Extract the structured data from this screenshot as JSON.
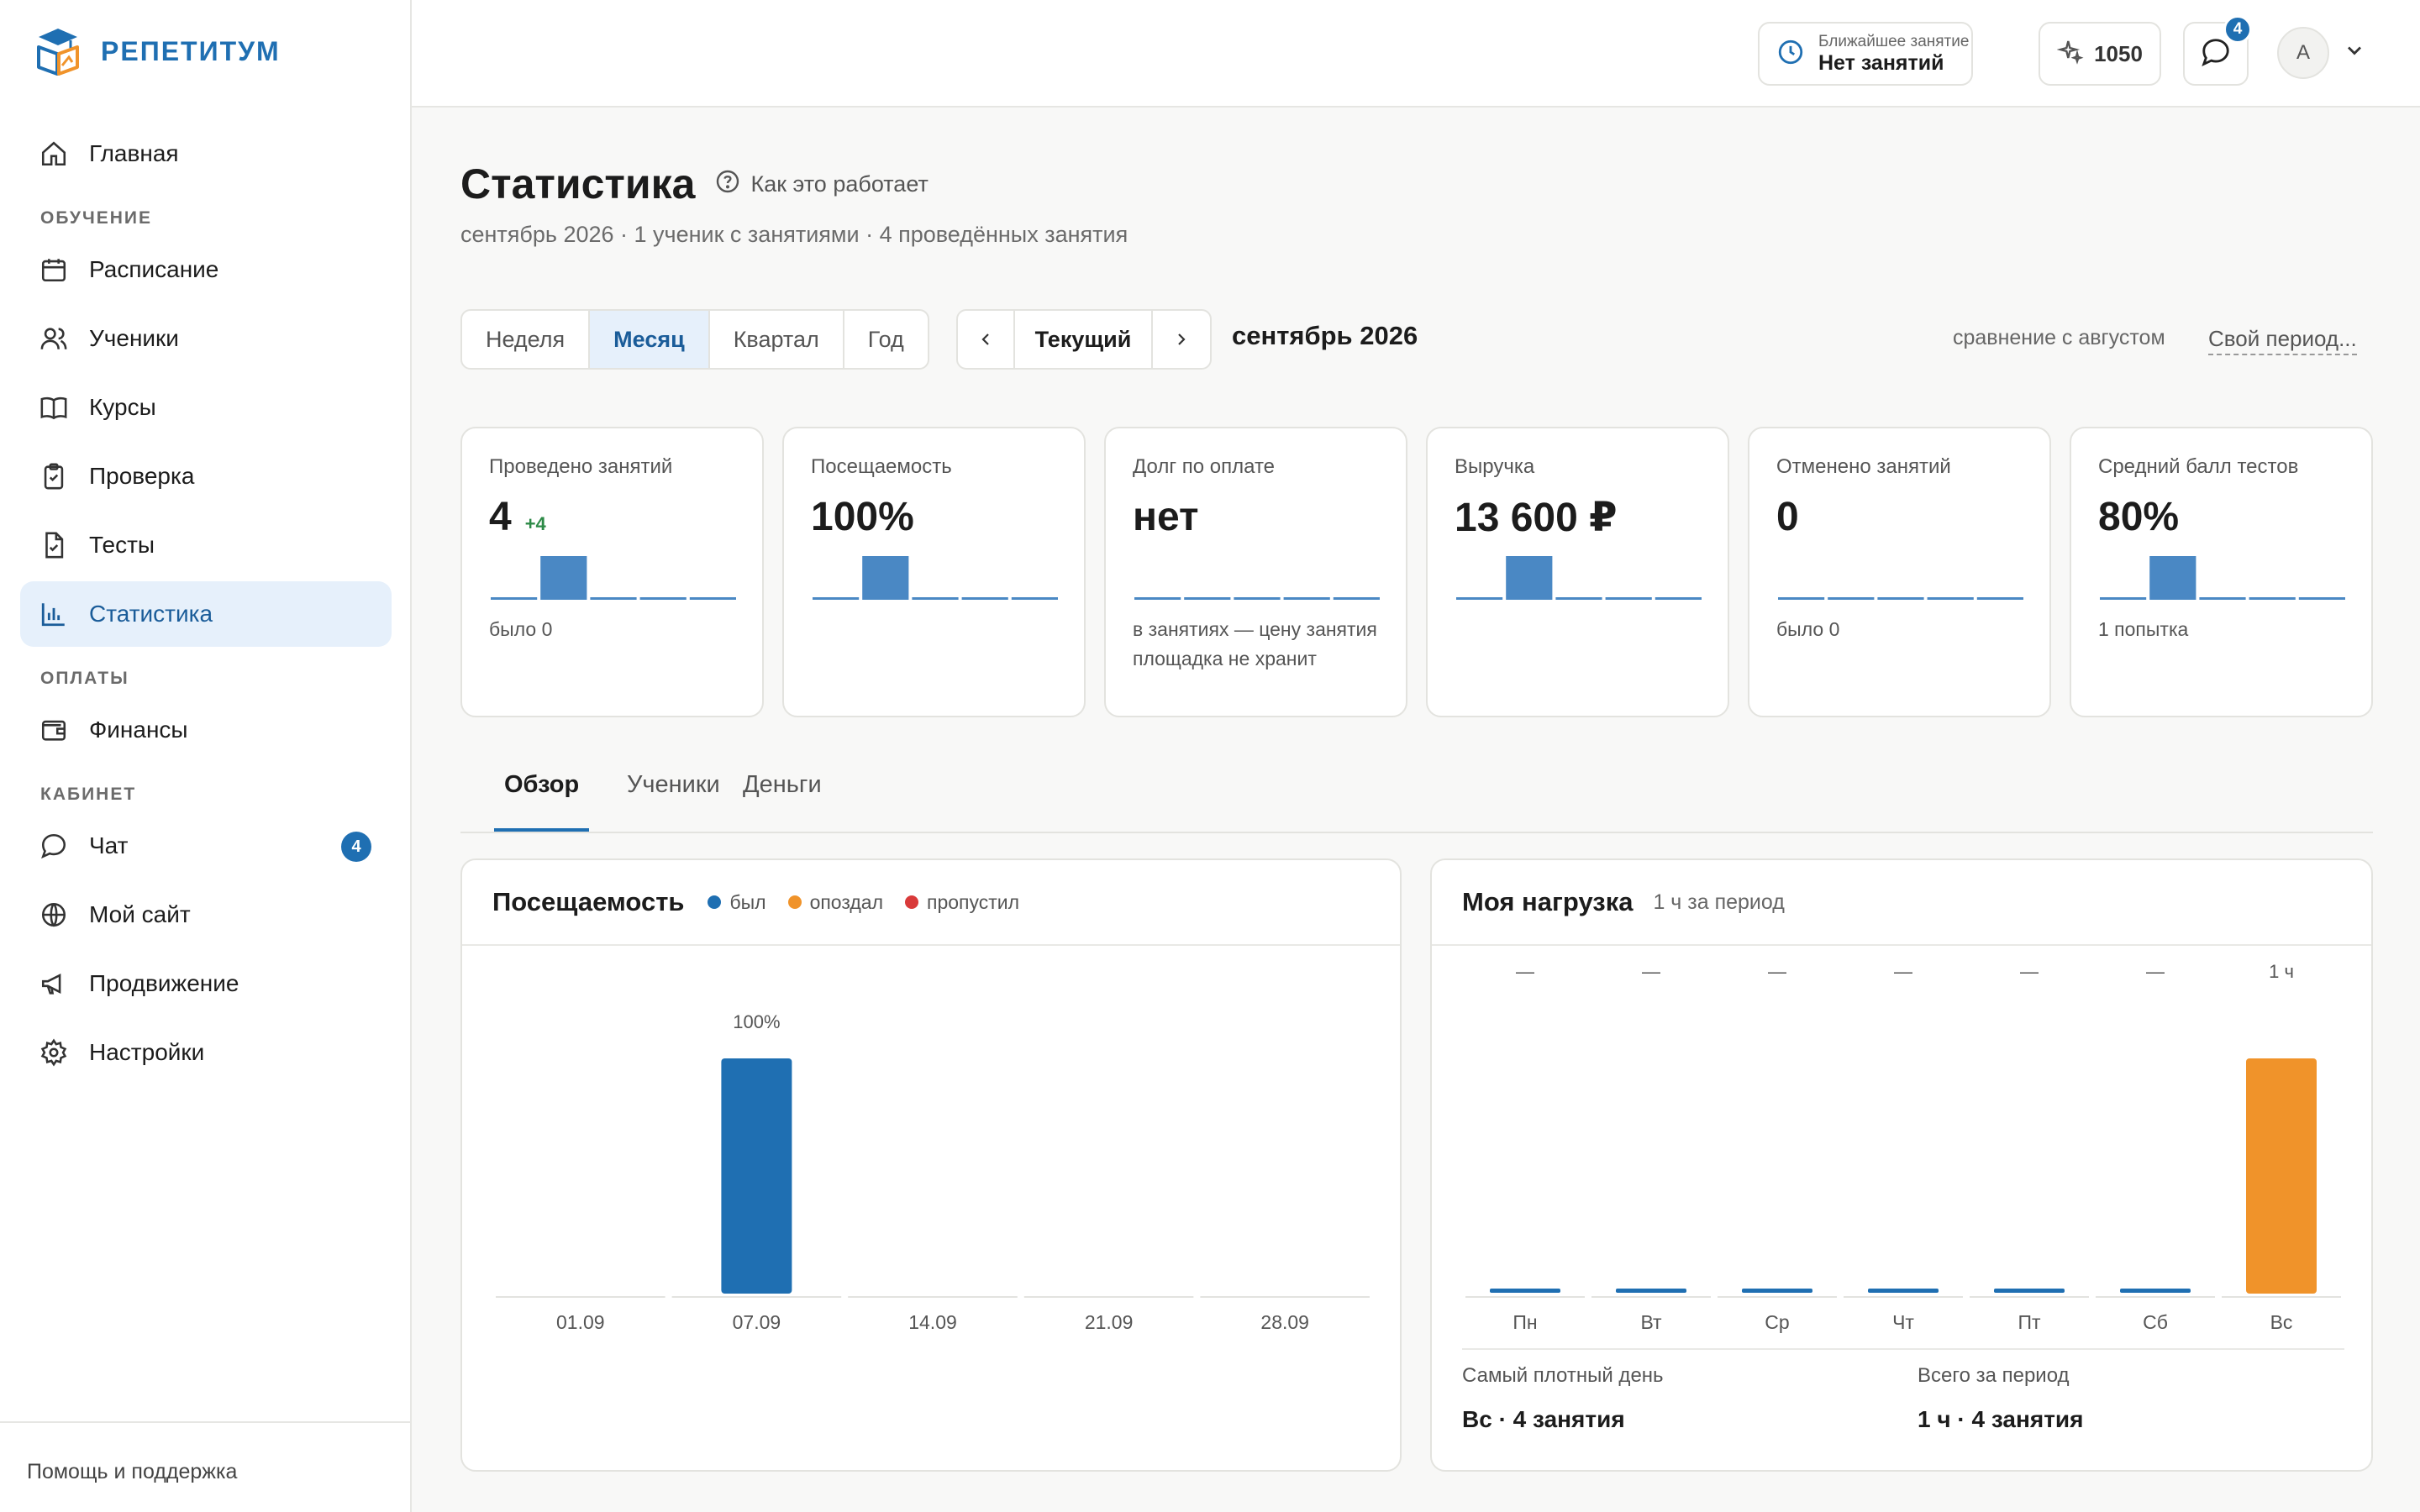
{
  "app": {
    "name": "РЕПЕТИТУМ"
  },
  "sidebar": {
    "home": "Главная",
    "section_learning": "ОБУЧЕНИЕ",
    "learning_items": [
      "Расписание",
      "Ученики",
      "Курсы",
      "Проверка",
      "Тесты",
      "Статистика"
    ],
    "section_payments": "ОПЛАТЫ",
    "payments_items": [
      "Финансы"
    ],
    "section_cabinet": "КАБИНЕТ",
    "cabinet_items": [
      "Чат",
      "Мой сайт",
      "Продвижение",
      "Настройки"
    ],
    "chat_badge": "4",
    "active_item": "Статистика",
    "help": "Помощь и поддержка"
  },
  "header": {
    "next_lesson_label": "Ближайшее занятие",
    "next_lesson_value": "Нет занятий",
    "points": "1050",
    "messages_badge": "4",
    "avatar_letter": "А"
  },
  "page": {
    "title": "Статистика",
    "how_it_works": "Как это работает",
    "subtitle": "сентябрь 2026 · 1 ученик с занятиями · 4 проведённых занятия"
  },
  "period": {
    "ranges": [
      "Неделя",
      "Месяц",
      "Квартал",
      "Год"
    ],
    "selected": "Месяц",
    "current_label": "Текущий",
    "current_period": "сентябрь 2026",
    "comparison": "сравнение с августом",
    "custom": "Свой период..."
  },
  "kpis": [
    {
      "label": "Проведено занятий",
      "value": "4",
      "delta": "+4",
      "note": "было 0",
      "spark": [
        0,
        1,
        0,
        0,
        0
      ]
    },
    {
      "label": "Посещаемость",
      "value": "100%",
      "delta": "",
      "note": "",
      "spark": [
        0,
        1,
        0,
        0,
        0
      ]
    },
    {
      "label": "Долг по оплате",
      "value": "нет",
      "delta": "",
      "note": "в занятиях — цену занятия площадка не хранит",
      "spark": [
        0,
        0,
        0,
        0,
        0
      ]
    },
    {
      "label": "Выручка",
      "value": "13 600 ₽",
      "delta": "",
      "note": "",
      "spark": [
        0,
        1,
        0,
        0,
        0
      ]
    },
    {
      "label": "Отменено занятий",
      "value": "0",
      "delta": "",
      "note": "было 0",
      "spark": [
        0,
        0,
        0,
        0,
        0
      ]
    },
    {
      "label": "Средний балл тестов",
      "value": "80%",
      "delta": "",
      "note": "1 попытка",
      "spark": [
        0,
        1,
        0,
        0,
        0
      ]
    }
  ],
  "tabs": [
    "Обзор",
    "Ученики",
    "Деньги"
  ],
  "active_tab": "Обзор",
  "attendance_panel": {
    "title": "Посещаемость",
    "legend": [
      {
        "label": "был",
        "color": "#1f6fb2"
      },
      {
        "label": "опоздал",
        "color": "#f0932a"
      },
      {
        "label": "пропустил",
        "color": "#d93a3a"
      }
    ]
  },
  "load_panel": {
    "title": "Моя нагрузка",
    "subtitle": "1 ч за период",
    "busiest_label": "Самый плотный день",
    "busiest_value": "Вс · 4 занятия",
    "total_label": "Всего за период",
    "total_value": "1 ч · 4 занятия"
  },
  "chart_data": [
    {
      "type": "bar",
      "title": "Посещаемость",
      "categories": [
        "01.09",
        "07.09",
        "14.09",
        "21.09",
        "28.09"
      ],
      "series": [
        {
          "name": "был",
          "values": [
            0,
            100,
            0,
            0,
            0
          ]
        }
      ],
      "data_labels": [
        "",
        "100%",
        "",
        "",
        ""
      ],
      "ylim": [
        0,
        100
      ],
      "color": "#1f6fb2",
      "grid": false
    },
    {
      "type": "bar",
      "title": "Моя нагрузка",
      "categories": [
        "Пн",
        "Вт",
        "Ср",
        "Чт",
        "Пт",
        "Сб",
        "Вс"
      ],
      "values": [
        0,
        0,
        0,
        0,
        0,
        0,
        1
      ],
      "data_labels": [
        "—",
        "—",
        "—",
        "—",
        "—",
        "—",
        "1 ч"
      ],
      "ylim": [
        0,
        1
      ],
      "color_empty": "#1f6fb2",
      "color_max": "#f0932a",
      "grid": false
    }
  ]
}
